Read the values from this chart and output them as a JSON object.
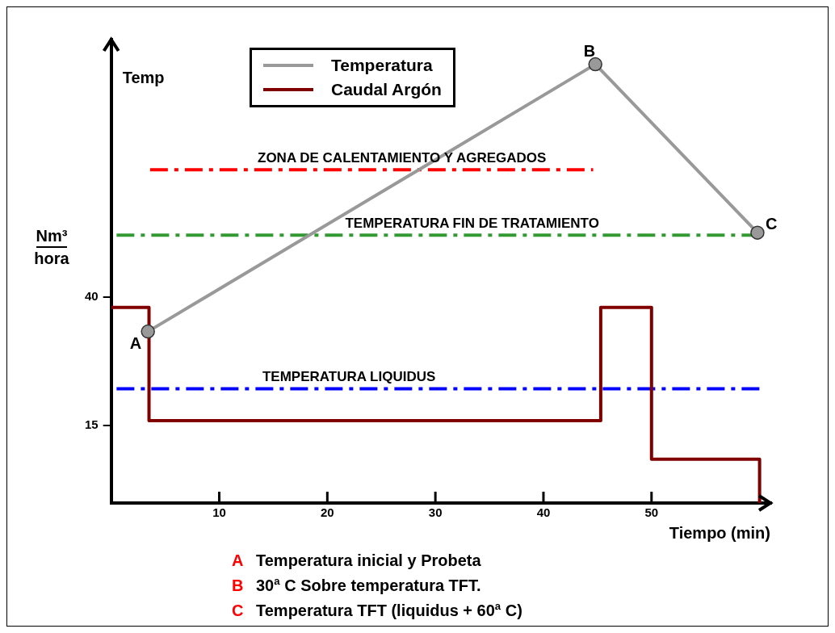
{
  "chart_data": {
    "type": "line",
    "xlabel": "Tiempo (min)",
    "ylabel": "Nm³ hora",
    "xlim": [
      0,
      61
    ],
    "xticks": [
      10,
      20,
      30,
      40,
      50
    ],
    "ylim": [
      0,
      90
    ],
    "yticks": [
      15,
      40
    ],
    "grid": false,
    "legend": "top left",
    "series": [
      {
        "name": "Temperatura",
        "type": "line",
        "color": "#999999",
        "x": [
          3.4,
          44.8,
          59.8
        ],
        "values": [
          33.3,
          85.2,
          52.5
        ],
        "marker": "circle"
      },
      {
        "name": "Caudal Argón",
        "type": "step",
        "color": "#800000",
        "x": [
          0,
          3.5,
          45.3,
          50,
          60
        ],
        "values": [
          38,
          16,
          38,
          8.5,
          0
        ],
        "marker": "none"
      },
      {
        "type": "line",
        "color": "#ff0000",
        "line_style": "dashed",
        "x": [
          3.6,
          44.6
        ],
        "values": [
          64.7,
          64.7
        ],
        "marker": "none"
      },
      {
        "type": "line",
        "color": "#339933",
        "line_style": "dashed",
        "x": [
          0.5,
          59.8
        ],
        "values": [
          52,
          52
        ],
        "marker": "none"
      },
      {
        "type": "line",
        "color": "#0000ff",
        "line_style": "dashed",
        "x": [
          0.5,
          60
        ],
        "values": [
          22.2,
          22.2
        ],
        "marker": "none"
      }
    ],
    "annotations": [
      "Temp",
      {
        "text": "ZONA DE CALENTAMIENTO Y AGREGADOS",
        "x": 26.9,
        "y": 64.7
      },
      {
        "text": "TEMPERATURA FIN DE TRATAMIENTO",
        "x": 33.4,
        "y": 52
      },
      {
        "text": "TEMPERATURA LIQUIDUS",
        "x": 22,
        "y": 22.2
      },
      {
        "text": "A",
        "x": 3.4,
        "y": 33.3
      },
      {
        "text": "B",
        "x": 44.8,
        "y": 85.2
      },
      {
        "text": "C",
        "x": 59.8,
        "y": 52.5
      },
      "A Temperatura inicial y Probeta",
      "B 30ª C Sobre temperatura TFT.",
      "C Temperatura TFT (liquidus + 60ª C)"
    ]
  }
}
